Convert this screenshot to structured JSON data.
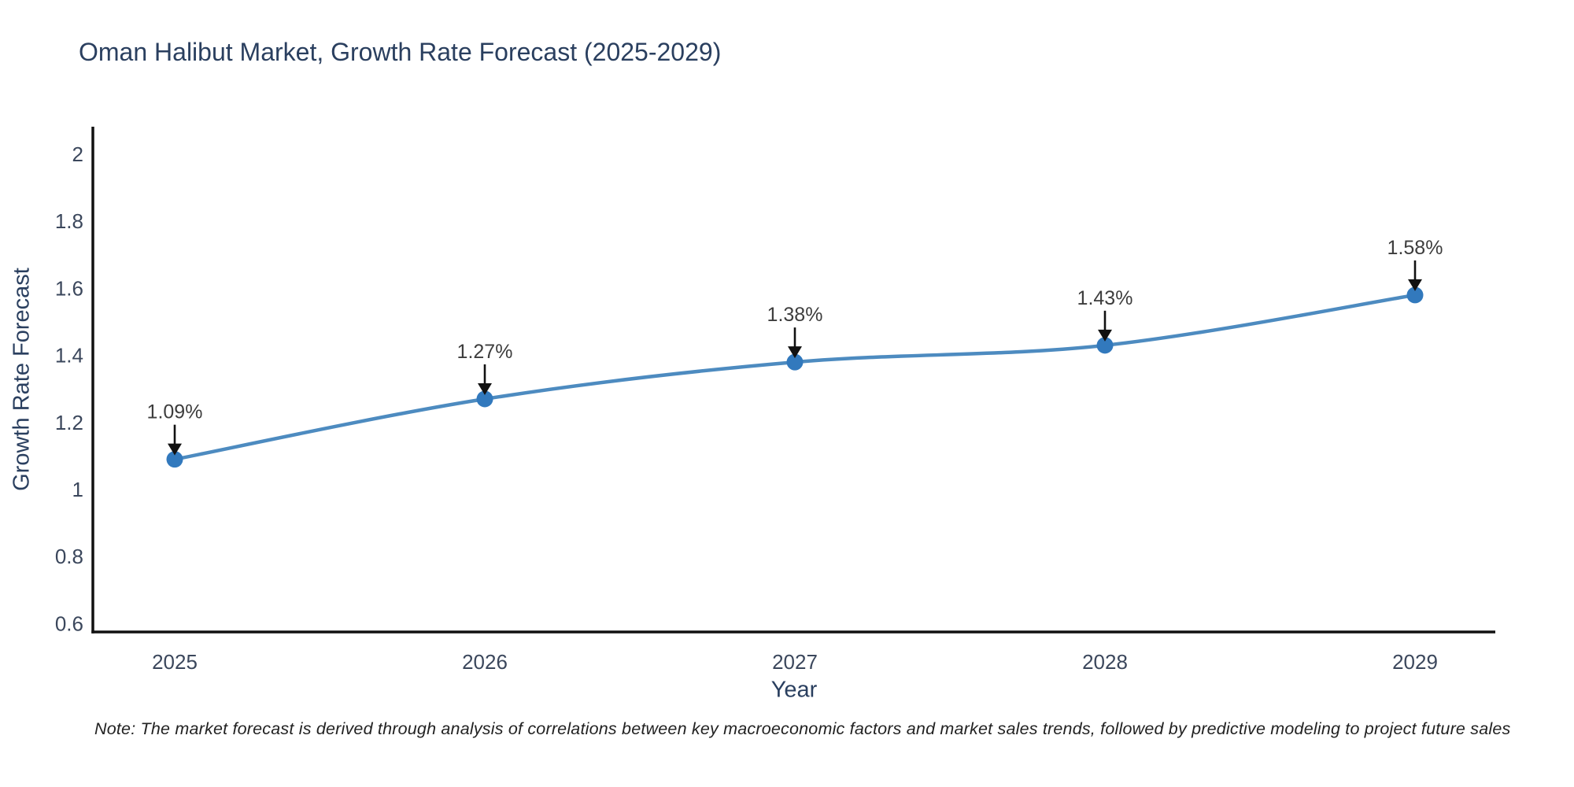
{
  "header": {
    "title": "Oman Halibut Market, Growth Rate Forecast (2025-2029)"
  },
  "chart_data": {
    "type": "line",
    "title": "Oman Halibut Market, Growth Rate Forecast (2025-2029)",
    "x": [
      2025,
      2026,
      2027,
      2028,
      2029
    ],
    "series": [
      {
        "name": "Growth Rate Forecast",
        "values": [
          1.09,
          1.27,
          1.38,
          1.43,
          1.58
        ]
      }
    ],
    "point_labels": [
      "1.09%",
      "1.27%",
      "1.38%",
      "1.43%",
      "1.58%"
    ],
    "xlabel": "Year",
    "ylabel": "Growth Rate Forecast",
    "x_tick_labels": [
      "2025",
      "2026",
      "2027",
      "2028",
      "2029"
    ],
    "y_ticks": [
      2,
      1.8,
      1.6,
      1.4,
      1.2,
      1,
      0.8,
      0.6
    ],
    "y_tick_labels": [
      "2",
      "1.8",
      "1.6",
      "1.4",
      "1.2",
      "1",
      "0.8",
      "0.6"
    ],
    "ylim": [
      0.58,
      2.08
    ],
    "grid": false,
    "legend": "none",
    "colors": {
      "line": "#4d8bc0",
      "marker": "#3279bd",
      "axis": "#111111",
      "tick_text": "#3b475c",
      "annotation_text": "#3d3d3d",
      "arrow": "#111111"
    }
  },
  "note": {
    "text": "Note: The market forecast is derived through analysis of correlations between key macroeconomic factors and market sales trends, followed by predictive modeling to project future sales"
  }
}
